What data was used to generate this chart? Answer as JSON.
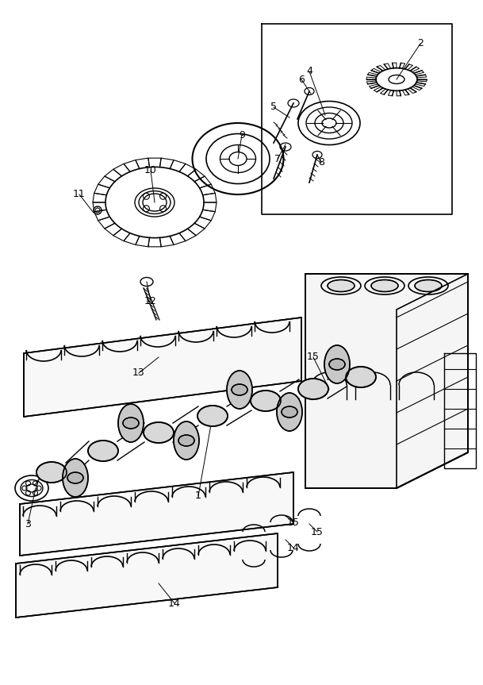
{
  "bg_color": "#ffffff",
  "line_color": "#000000",
  "lw": 1.0,
  "figsize": [
    6.09,
    8.63
  ],
  "dpi": 100
}
